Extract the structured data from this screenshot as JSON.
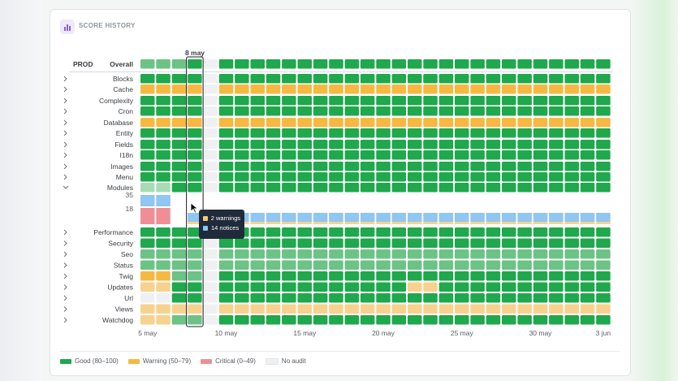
{
  "title": "SCORE HISTORY",
  "env_label": "PROD",
  "overall_label": "Overall",
  "selected_date": "8 may",
  "colors": {
    "good": "#1fa84c",
    "good_light": "#6cc386",
    "good_faint": "#a7dcb7",
    "warning": "#f5b942",
    "warning_light": "#f7d28e",
    "critical": "#ef8f95",
    "no_audit": "#eef0f2",
    "blue": "#8fc6f2"
  },
  "categories": [
    "Blocks",
    "Cache",
    "Complexity",
    "Cron",
    "Database",
    "Entity",
    "Fields",
    "I18n",
    "Images",
    "Menu",
    "Modules",
    "Performance",
    "Security",
    "Seo",
    "Status",
    "Twig",
    "Updates",
    "Url",
    "Views",
    "Watchdog"
  ],
  "modules_ticks": [
    "35",
    "18"
  ],
  "x_axis_ticks": [
    "5 may",
    "10 may",
    "15 may",
    "20 may",
    "25 may",
    "30 may",
    "3 jun"
  ],
  "tooltip": {
    "warnings": "2 warnings",
    "notices": "14 notices"
  },
  "legend": [
    {
      "label": "Good (80–100)",
      "color": "#1fa84c"
    },
    {
      "label": "Warning (50–79)",
      "color": "#f5b942"
    },
    {
      "label": "Critical (0–49)",
      "color": "#ef8f95"
    },
    {
      "label": "No audit",
      "color": "#eef0f2"
    }
  ],
  "chart_data": {
    "type": "heatmap",
    "x": [
      "5 may",
      "6 may",
      "7 may",
      "8 may",
      "9 may",
      "10 may",
      "11 may",
      "12 may",
      "13 may",
      "14 may",
      "15 may",
      "16 may",
      "17 may",
      "18 may",
      "19 may",
      "20 may",
      "21 may",
      "22 may",
      "23 may",
      "24 may",
      "25 may",
      "26 may",
      "27 may",
      "28 may",
      "29 may",
      "30 may",
      "31 may",
      "1 jun",
      "2 jun",
      "3 jun"
    ],
    "rows": {
      "Overall": "lll G n GGGGGGGGGGGGGGGGGGGGGGGGG",
      "Blocks": "GGG G n GGGGGGGGGGGGGGGGGGGGGGGGG",
      "Cache": "WWW W n WWWWWWWWWWWWWWWWWWWWWWWWW",
      "Complexity": "GGG G n GGGGGGGGGGGGGGGGGGGGGGGGG",
      "Cron": "GGG G n GGGGGGGGGGGGGGGGGGGGGGGGG",
      "Database": "WWW W n WWWWWWWWWWWWWWWWWWWWWWWWW",
      "Entity": "GGG G n GGGGGGGGGGGGGGGGGGGGGGGGG",
      "Fields": "GGG G n GGGGGGGGGGGGGGGGGGGGGGGGG",
      "I18n": "GGG G n GGGGGGGGGGGGGGGGGGGGGGGGG",
      "Images": "GGG G n GGGGGGGGGGGGGGGGGGGGGGGGG",
      "Menu": "GGG G n GGGGGGGGGGGGGGGGGGGGGGGGG",
      "Modules": "ffG G n GGGGGGGGGGGGGGGGGGGGGGGGG",
      "Performance": "GGG G n GGGGGGGGGGGGGGGGGGGGGGGGG",
      "Security": "GGG G n GGGGGGGGGGGGGGGGGGGGGGGGG",
      "Seo": "lll l n lllllllllllllllllllllllll",
      "Status": "lll l n lllllllllllllllllllllllll",
      "Twig": "WWl l n GGGGGGGGGGGGGGGGGGGGGGGGG",
      "Updates": "wwG G n GGGGGGGGGGGGwwGGGGGGGGGGG",
      "Url": "nnG G n GGGGGGGGGGGGGGGGGGGGGGGGG",
      "Views": "www w n wwwwwwwwwwwwwwwwwwwwwwwww",
      "Watchdog": "wwl l n GGGGGGGGGGGGGGGGGGGGGGGGG"
    },
    "legend_key": {
      "G": "good",
      "l": "good (light)",
      "f": "good (faint)",
      "W": "warning",
      "w": "warning (light)",
      "n": "no audit"
    }
  }
}
